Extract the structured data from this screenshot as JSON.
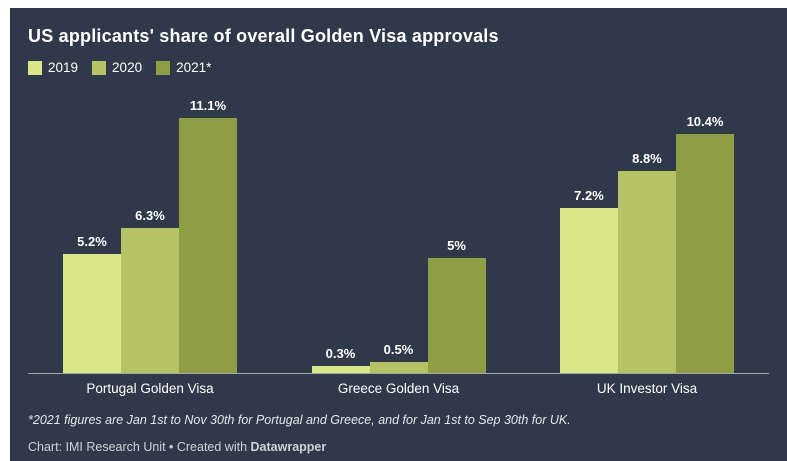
{
  "card": {
    "background_color": "#2f3949",
    "text_color": "#ffffff"
  },
  "chart_data": {
    "type": "bar",
    "title": "US applicants' share of overall Golden Visa approvals",
    "categories": [
      "Portugal Golden Visa",
      "Greece Golden Visa",
      "UK Investor Visa"
    ],
    "series": [
      {
        "name": "2019",
        "color": "#d9e788",
        "values": [
          5.2,
          0.3,
          7.2
        ],
        "labels": [
          "5.2%",
          "0.3%",
          "7.2%"
        ]
      },
      {
        "name": "2020",
        "color": "#b5c366",
        "values": [
          6.3,
          0.5,
          8.8
        ],
        "labels": [
          "6.3%",
          "0.5%",
          "8.8%"
        ]
      },
      {
        "name": "2021*",
        "color": "#8f9d44",
        "values": [
          11.1,
          5,
          10.4
        ],
        "labels": [
          "11.1%",
          "5%",
          "10.4%"
        ]
      }
    ],
    "ylim": [
      0,
      11.1
    ],
    "grid": false,
    "axis_line": "bottom",
    "legend_position": "top-left",
    "value_labels": "above-bars"
  },
  "footnote": "*2021 figures are Jan 1st to Nov 30th for Portugal and Greece, and for Jan 1st to Sep 30th for UK.",
  "footer": {
    "prefix": "Chart: IMI Research Unit • Created with ",
    "brand": "Datawrapper"
  }
}
